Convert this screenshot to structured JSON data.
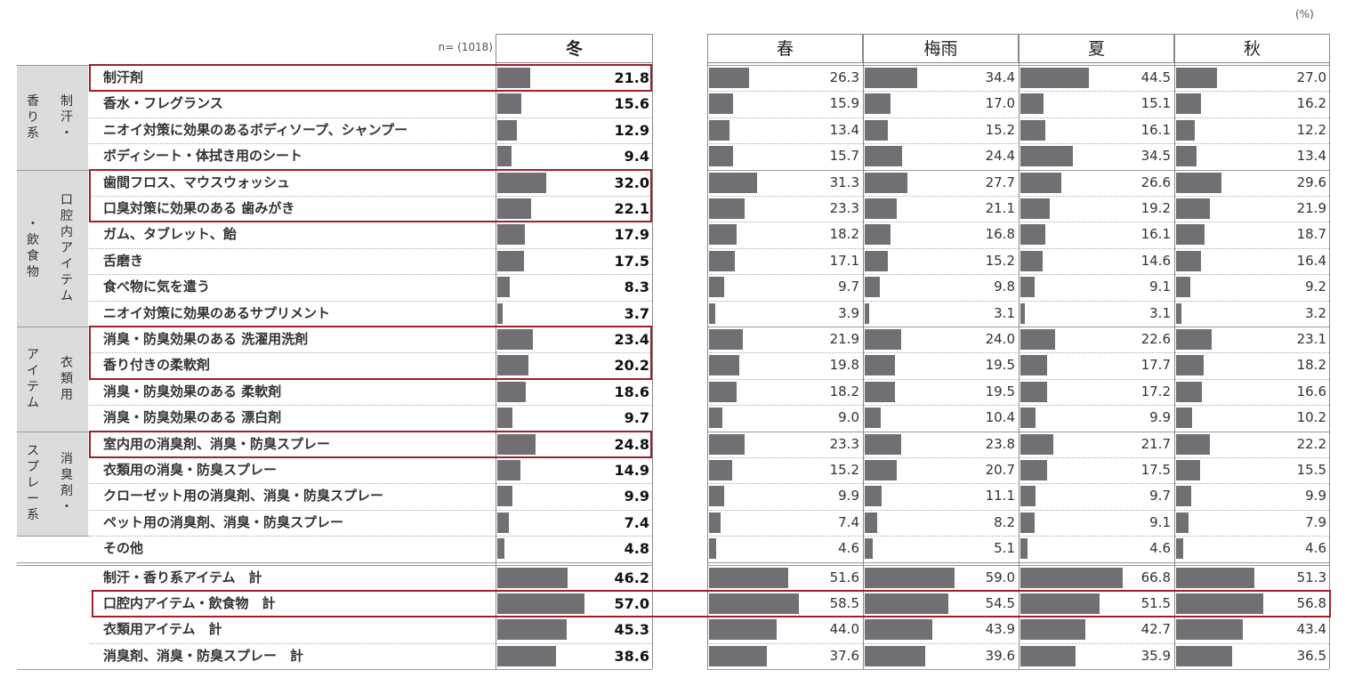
{
  "unit_label": "(%)",
  "sample_label": "n= (1018)",
  "columns": [
    "冬",
    "春",
    "梅雨",
    "夏",
    "秋"
  ],
  "groups": [
    {
      "lines": [
        "香り系",
        "制汗・"
      ]
    },
    {
      "lines": [
        "・飲食物",
        "口腔内アイテム"
      ]
    },
    {
      "lines": [
        "アイテム",
        "衣類用"
      ]
    },
    {
      "lines": [
        "スプレー系",
        "消臭剤・"
      ]
    }
  ],
  "colors": {
    "bar": "#716f74",
    "highlight": "#a0202a",
    "group_bg": "#dcdcdc"
  },
  "chart_data": {
    "type": "bar",
    "orientation": "horizontal",
    "unit": "%",
    "categories": [
      "制汗剤",
      "香水・フレグランス",
      "ニオイ対策に効果のあるボディソープ、シャンプー",
      "ボディシート・体拭き用のシート",
      "歯間フロス、マウスウォッシュ",
      "口臭対策に効果のある 歯みがき",
      "ガム、タブレット、飴",
      "舌磨き",
      "食べ物に気を遣う",
      "ニオイ対策に効果のあるサプリメント",
      "消臭・防臭効果のある 洗濯用洗剤",
      "香り付きの柔軟剤",
      "消臭・防臭効果のある 柔軟剤",
      "消臭・防臭効果のある 漂白剤",
      "室内用の消臭剤、消臭・防臭スプレー",
      "衣類用の消臭・防臭スプレー",
      "クローゼット用の消臭剤、消臭・防臭スプレー",
      "ペット用の消臭剤、消臭・防臭スプレー",
      "その他",
      "制汗・香り系アイテム　計",
      "口腔内アイテム・飲食物　計",
      "衣類用アイテム　計",
      "消臭剤、消臭・防臭スプレー　計"
    ],
    "series": [
      {
        "name": "冬",
        "values": [
          "21.8",
          "15.6",
          "12.9",
          "9.4",
          "32.0",
          "22.1",
          "17.9",
          "17.5",
          "8.3",
          "3.7",
          "23.4",
          "20.2",
          "18.6",
          "9.7",
          "24.8",
          "14.9",
          "9.9",
          "7.4",
          "4.8",
          "46.2",
          "57.0",
          "45.3",
          "38.6"
        ]
      },
      {
        "name": "春",
        "values": [
          "26.3",
          "15.9",
          "13.4",
          "15.7",
          "31.3",
          "23.3",
          "18.2",
          "17.1",
          "9.7",
          "3.9",
          "21.9",
          "19.8",
          "18.2",
          "9.0",
          "23.3",
          "15.2",
          "9.9",
          "7.4",
          "4.6",
          "51.6",
          "58.5",
          "44.0",
          "37.6"
        ]
      },
      {
        "name": "梅雨",
        "values": [
          "34.4",
          "17.0",
          "15.2",
          "24.4",
          "27.7",
          "21.1",
          "16.8",
          "15.2",
          "9.8",
          "3.1",
          "24.0",
          "19.5",
          "19.5",
          "10.4",
          "23.8",
          "20.7",
          "11.1",
          "8.2",
          "5.1",
          "59.0",
          "54.5",
          "43.9",
          "39.6"
        ]
      },
      {
        "name": "夏",
        "values": [
          "44.5",
          "15.1",
          "16.1",
          "34.5",
          "26.6",
          "19.2",
          "16.1",
          "14.6",
          "9.1",
          "3.1",
          "22.6",
          "17.7",
          "17.2",
          "9.9",
          "21.7",
          "17.5",
          "9.7",
          "9.1",
          "4.6",
          "66.8",
          "51.5",
          "42.7",
          "35.9"
        ]
      },
      {
        "name": "秋",
        "values": [
          "27.0",
          "16.2",
          "12.2",
          "13.4",
          "29.6",
          "21.9",
          "18.7",
          "16.4",
          "9.2",
          "3.2",
          "23.1",
          "18.2",
          "16.6",
          "10.2",
          "22.2",
          "15.5",
          "9.9",
          "7.9",
          "4.6",
          "51.3",
          "56.8",
          "43.4",
          "36.5"
        ]
      }
    ],
    "highlighted_rows": [
      0,
      4,
      5,
      10,
      11,
      14,
      20
    ]
  }
}
